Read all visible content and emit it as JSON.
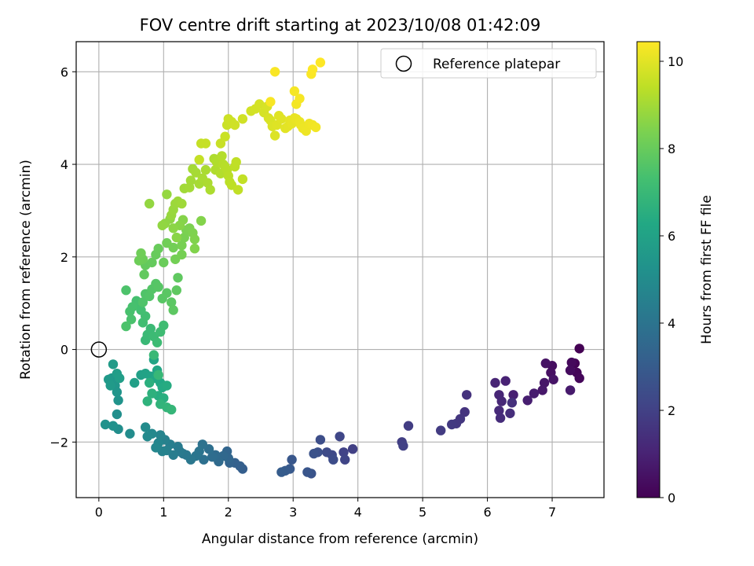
{
  "chart_data": {
    "type": "scatter",
    "title": "FOV centre drift starting at 2023/10/08 01:42:09",
    "xlabel": "Angular distance from reference (arcmin)",
    "ylabel": "Rotation from reference (arcmin)",
    "xlim": [
      -0.35,
      7.8
    ],
    "ylim": [
      -3.2,
      6.65
    ],
    "xticks": [
      0,
      1,
      2,
      3,
      4,
      5,
      6,
      7
    ],
    "yticks": [
      -2,
      0,
      2,
      4,
      6
    ],
    "ytick_labels": [
      "−2",
      "0",
      "2",
      "4",
      "6"
    ],
    "grid": true,
    "legend": {
      "location": "top-right",
      "entries": [
        {
          "label": "Reference platepar",
          "marker": "open-circle",
          "color": "#000000"
        }
      ]
    },
    "reference_point": {
      "x": 0,
      "y": 0
    },
    "colorbar": {
      "label": "Hours from first FF file",
      "colormap": "viridis",
      "range": [
        0,
        10.45
      ],
      "ticks": [
        0,
        2,
        4,
        6,
        8,
        10
      ]
    },
    "segments": [
      {
        "hours": [
          0.0,
          2.0
        ],
        "points": [
          [
            7.42,
            0.02
          ],
          [
            7.35,
            -0.3
          ],
          [
            7.38,
            -0.5
          ],
          [
            7.42,
            -0.62
          ],
          [
            7.3,
            -0.28
          ],
          [
            7.28,
            -0.45
          ],
          [
            7.0,
            -0.35
          ],
          [
            6.98,
            -0.5
          ],
          [
            6.9,
            -0.3
          ],
          [
            7.02,
            -0.65
          ],
          [
            6.88,
            -0.72
          ],
          [
            6.85,
            -0.88
          ],
          [
            7.28,
            -0.88
          ],
          [
            6.72,
            -0.95
          ],
          [
            6.62,
            -1.1
          ],
          [
            6.4,
            -0.98
          ],
          [
            6.28,
            -0.68
          ],
          [
            6.12,
            -0.72
          ],
          [
            6.18,
            -0.98
          ],
          [
            6.22,
            -1.12
          ],
          [
            6.18,
            -1.32
          ],
          [
            6.2,
            -1.48
          ],
          [
            6.35,
            -1.38
          ],
          [
            6.38,
            -1.15
          ],
          [
            5.68,
            -0.98
          ],
          [
            5.65,
            -1.35
          ],
          [
            5.58,
            -1.5
          ],
          [
            5.52,
            -1.6
          ],
          [
            5.45,
            -1.62
          ],
          [
            5.28,
            -1.75
          ],
          [
            4.78,
            -1.65
          ],
          [
            4.68,
            -2.0
          ],
          [
            4.7,
            -2.08
          ]
        ]
      },
      {
        "hours": [
          2.0,
          4.2
        ],
        "points": [
          [
            3.92,
            -2.15
          ],
          [
            3.78,
            -2.22
          ],
          [
            3.8,
            -2.38
          ],
          [
            3.72,
            -1.88
          ],
          [
            3.6,
            -2.28
          ],
          [
            3.52,
            -2.22
          ],
          [
            3.62,
            -2.38
          ],
          [
            3.42,
            -1.95
          ],
          [
            3.38,
            -2.22
          ],
          [
            3.32,
            -2.25
          ],
          [
            3.28,
            -2.68
          ],
          [
            3.22,
            -2.65
          ],
          [
            2.98,
            -2.38
          ],
          [
            2.95,
            -2.58
          ],
          [
            2.88,
            -2.62
          ],
          [
            2.82,
            -2.65
          ],
          [
            2.22,
            -2.58
          ],
          [
            2.18,
            -2.52
          ],
          [
            2.1,
            -2.45
          ],
          [
            2.02,
            -2.45
          ],
          [
            1.98,
            -2.2
          ],
          [
            2.0,
            -2.35
          ],
          [
            1.92,
            -2.3
          ],
          [
            1.85,
            -2.42
          ],
          [
            1.8,
            -2.28
          ],
          [
            1.75,
            -2.32
          ],
          [
            1.7,
            -2.15
          ],
          [
            1.62,
            -2.38
          ],
          [
            1.6,
            -2.05
          ],
          [
            1.55,
            -2.2
          ],
          [
            1.5,
            -2.3
          ],
          [
            1.42,
            -2.38
          ],
          [
            1.35,
            -2.28
          ]
        ]
      },
      {
        "hours": [
          4.2,
          7.0
        ],
        "points": [
          [
            1.3,
            -2.25
          ],
          [
            1.25,
            -2.2
          ],
          [
            1.22,
            -2.1
          ],
          [
            1.15,
            -2.28
          ],
          [
            1.1,
            -2.05
          ],
          [
            1.05,
            -2.18
          ],
          [
            1.02,
            -1.95
          ],
          [
            0.98,
            -2.2
          ],
          [
            0.95,
            -1.85
          ],
          [
            0.92,
            -2.02
          ],
          [
            0.88,
            -2.12
          ],
          [
            0.82,
            -1.82
          ],
          [
            0.75,
            -1.88
          ],
          [
            0.72,
            -1.68
          ],
          [
            0.48,
            -1.82
          ],
          [
            0.3,
            -1.72
          ],
          [
            0.28,
            -1.4
          ],
          [
            0.22,
            -1.65
          ],
          [
            0.1,
            -1.62
          ],
          [
            0.3,
            -1.1
          ],
          [
            0.28,
            -0.92
          ],
          [
            0.25,
            -0.78
          ],
          [
            0.2,
            -0.62
          ],
          [
            0.15,
            -0.65
          ],
          [
            0.18,
            -0.78
          ],
          [
            0.22,
            -0.32
          ],
          [
            0.28,
            -0.52
          ],
          [
            0.32,
            -0.62
          ],
          [
            0.55,
            -0.72
          ],
          [
            0.65,
            -0.55
          ],
          [
            0.72,
            -0.52
          ],
          [
            0.8,
            -0.58
          ],
          [
            0.85,
            -0.22
          ],
          [
            0.9,
            -0.45
          ],
          [
            0.88,
            -0.62
          ],
          [
            0.95,
            -0.72
          ],
          [
            0.98,
            -0.82
          ],
          [
            1.05,
            -0.78
          ],
          [
            0.92,
            -1.0
          ],
          [
            1.0,
            -1.05
          ],
          [
            0.78,
            -0.72
          ],
          [
            0.82,
            -0.95
          ],
          [
            0.75,
            -1.12
          ],
          [
            0.95,
            -1.18
          ],
          [
            1.05,
            -1.25
          ],
          [
            1.12,
            -1.3
          ],
          [
            0.92,
            -0.55
          ],
          [
            0.85,
            -0.12
          ]
        ]
      },
      {
        "hours": [
          7.0,
          9.0
        ],
        "points": [
          [
            0.72,
            0.2
          ],
          [
            0.75,
            0.32
          ],
          [
            0.8,
            0.45
          ],
          [
            0.85,
            0.28
          ],
          [
            0.9,
            0.15
          ],
          [
            0.95,
            0.38
          ],
          [
            1.0,
            0.52
          ],
          [
            0.68,
            0.58
          ],
          [
            0.72,
            0.72
          ],
          [
            0.65,
            0.85
          ],
          [
            0.62,
            0.95
          ],
          [
            0.58,
            1.05
          ],
          [
            0.52,
            0.92
          ],
          [
            0.48,
            0.82
          ],
          [
            0.5,
            0.65
          ],
          [
            0.42,
            0.5
          ],
          [
            0.42,
            1.28
          ],
          [
            0.68,
            1.02
          ],
          [
            0.72,
            1.2
          ],
          [
            0.78,
            1.15
          ],
          [
            0.82,
            1.3
          ],
          [
            0.88,
            1.42
          ],
          [
            0.92,
            1.35
          ],
          [
            0.98,
            1.1
          ],
          [
            1.05,
            1.22
          ],
          [
            1.12,
            1.02
          ],
          [
            1.15,
            0.85
          ],
          [
            1.2,
            1.28
          ],
          [
            1.22,
            1.55
          ],
          [
            0.7,
            1.62
          ],
          [
            0.72,
            1.82
          ],
          [
            0.82,
            1.88
          ],
          [
            0.88,
            2.05
          ],
          [
            0.92,
            2.18
          ],
          [
            1.0,
            1.88
          ],
          [
            0.68,
            1.95
          ],
          [
            0.62,
            1.92
          ],
          [
            0.65,
            2.08
          ],
          [
            1.05,
            2.3
          ],
          [
            1.15,
            2.2
          ],
          [
            1.18,
            1.95
          ],
          [
            1.28,
            2.05
          ],
          [
            1.28,
            2.25
          ],
          [
            1.32,
            2.42
          ],
          [
            1.35,
            2.58
          ],
          [
            1.4,
            2.62
          ],
          [
            1.45,
            2.52
          ],
          [
            1.48,
            2.38
          ],
          [
            1.48,
            2.18
          ],
          [
            1.58,
            2.78
          ],
          [
            1.3,
            2.8
          ],
          [
            1.25,
            2.68
          ],
          [
            1.2,
            2.42
          ],
          [
            1.15,
            2.62
          ],
          [
            1.1,
            2.82
          ],
          [
            1.02,
            2.72
          ],
          [
            0.98,
            2.68
          ],
          [
            0.78,
            3.15
          ],
          [
            1.05,
            3.35
          ],
          [
            1.12,
            2.9
          ],
          [
            1.15,
            3.02
          ],
          [
            1.18,
            3.15
          ],
          [
            1.22,
            3.2
          ],
          [
            1.28,
            3.15
          ],
          [
            1.32,
            3.48
          ],
          [
            1.4,
            3.5
          ]
        ]
      },
      {
        "hours": [
          9.0,
          10.45
        ],
        "points": [
          [
            1.42,
            3.65
          ],
          [
            1.45,
            3.9
          ],
          [
            1.5,
            3.82
          ],
          [
            1.55,
            3.58
          ],
          [
            1.6,
            3.7
          ],
          [
            1.65,
            3.88
          ],
          [
            1.68,
            3.6
          ],
          [
            1.72,
            3.45
          ],
          [
            1.78,
            4.12
          ],
          [
            1.8,
            3.88
          ],
          [
            1.82,
            4.05
          ],
          [
            1.88,
            3.8
          ],
          [
            1.9,
            4.18
          ],
          [
            1.92,
            4.0
          ],
          [
            1.95,
            3.95
          ],
          [
            1.98,
            3.88
          ],
          [
            2.0,
            3.75
          ],
          [
            2.02,
            3.62
          ],
          [
            2.05,
            3.55
          ],
          [
            2.1,
            3.95
          ],
          [
            2.12,
            4.05
          ],
          [
            2.15,
            3.45
          ],
          [
            2.22,
            3.68
          ],
          [
            1.55,
            4.1
          ],
          [
            1.58,
            4.45
          ],
          [
            1.65,
            4.45
          ],
          [
            1.88,
            4.45
          ],
          [
            1.95,
            4.6
          ],
          [
            1.98,
            4.85
          ],
          [
            2.0,
            4.98
          ],
          [
            2.05,
            4.92
          ],
          [
            2.1,
            4.85
          ],
          [
            2.22,
            4.98
          ],
          [
            2.35,
            5.15
          ],
          [
            2.42,
            5.2
          ],
          [
            2.48,
            5.3
          ],
          [
            2.55,
            5.12
          ],
          [
            2.6,
            5.25
          ],
          [
            2.62,
            5.0
          ],
          [
            2.65,
            4.95
          ],
          [
            2.68,
            4.82
          ],
          [
            2.72,
            4.62
          ],
          [
            2.75,
            4.85
          ],
          [
            2.78,
            5.05
          ],
          [
            2.82,
            4.98
          ],
          [
            2.88,
            4.78
          ],
          [
            2.92,
            4.82
          ],
          [
            2.95,
            4.95
          ],
          [
            2.98,
            4.88
          ],
          [
            3.02,
            5.0
          ],
          [
            3.05,
            4.98
          ],
          [
            3.1,
            4.92
          ],
          [
            3.12,
            4.85
          ],
          [
            3.15,
            4.78
          ],
          [
            3.2,
            4.72
          ],
          [
            3.25,
            4.88
          ],
          [
            3.3,
            4.85
          ],
          [
            3.35,
            4.8
          ],
          [
            3.05,
            5.3
          ],
          [
            3.02,
            5.58
          ],
          [
            3.1,
            5.42
          ],
          [
            2.65,
            5.35
          ],
          [
            2.72,
            6.0
          ],
          [
            3.28,
            5.95
          ],
          [
            3.3,
            6.05
          ],
          [
            3.42,
            6.2
          ]
        ]
      }
    ]
  }
}
